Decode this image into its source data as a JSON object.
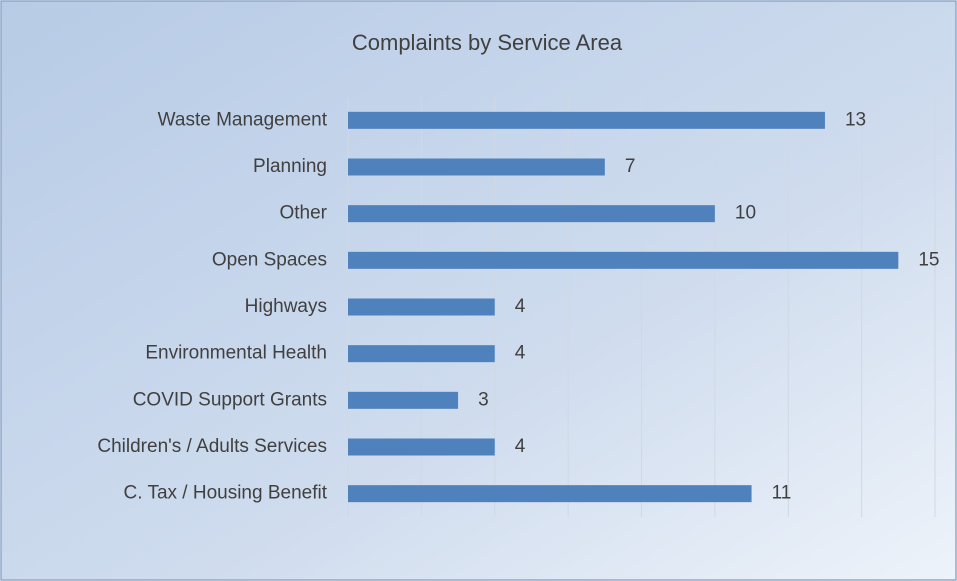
{
  "chart_data": {
    "type": "bar",
    "orientation": "horizontal",
    "title": "Complaints by Service Area",
    "categories": [
      "Waste Management",
      "Planning",
      "Other",
      "Open Spaces",
      "Highways",
      "Environmental Health",
      "COVID Support Grants",
      "Children's / Adults Services",
      "C. Tax / Housing Benefit"
    ],
    "values": [
      13,
      7,
      10,
      15,
      4,
      4,
      3,
      4,
      11
    ],
    "color": "#4f81bd",
    "xlim": [
      0,
      16
    ],
    "xticks": [
      0,
      2,
      4,
      6,
      8,
      10,
      12,
      14,
      16
    ],
    "grid": true
  }
}
